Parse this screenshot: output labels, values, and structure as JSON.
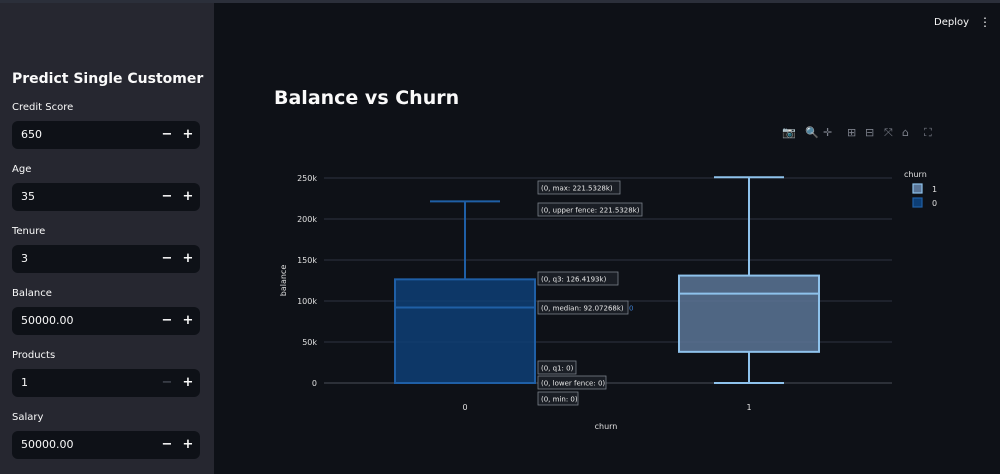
{
  "sidebar": {
    "title": "Predict Single Customer",
    "fields": [
      {
        "label": "Credit Score",
        "value": "650",
        "minus_enabled": true
      },
      {
        "label": "Age",
        "value": "35",
        "minus_enabled": true
      },
      {
        "label": "Tenure",
        "value": "3",
        "minus_enabled": true
      },
      {
        "label": "Balance",
        "value": "50000.00",
        "minus_enabled": true
      },
      {
        "label": "Products",
        "value": "1",
        "minus_enabled": false
      },
      {
        "label": "Salary",
        "value": "50000.00",
        "minus_enabled": true
      }
    ],
    "minus_symbol": "−",
    "plus_symbol": "+"
  },
  "header": {
    "deploy_label": "Deploy",
    "menu_symbol": "⋮"
  },
  "main": {
    "title": "Balance vs Churn"
  },
  "modebar": {
    "camera": "📷",
    "zoom": "🔍",
    "pan": "✛",
    "zoom_in": "⊞",
    "zoom_out": "⊟",
    "autoscale": "⤧",
    "reset": "⌂",
    "fullscreen": "⛶"
  },
  "chart_data": {
    "type": "box",
    "xlabel": "churn",
    "ylabel": "balance",
    "categories": [
      "0",
      "1"
    ],
    "yticks": [
      "0",
      "50k",
      "100k",
      "150k",
      "200k",
      "250k"
    ],
    "ytick_values": [
      0,
      50000,
      100000,
      150000,
      200000,
      250000
    ],
    "ylim": [
      0,
      260000
    ],
    "legend_title": "churn",
    "legend": [
      "1",
      "0"
    ],
    "legend_placement": "top-right",
    "grid": true,
    "series": [
      {
        "name": "0",
        "category": "0",
        "min": 0,
        "lower_fence": 0,
        "q1": 0,
        "median": 92072.68,
        "q3": 126419.3,
        "upper_fence": 221532.8,
        "max": 221532.8,
        "color": "#1f5fa6",
        "fill": "#0d3e75"
      },
      {
        "name": "1",
        "category": "1",
        "min": 0,
        "lower_fence": 0,
        "q1": 38000,
        "median": 109000,
        "q3": 131000,
        "upper_fence": 250900,
        "max": 250900,
        "color": "#8ec2ec",
        "fill": "#5a7597"
      }
    ],
    "hover_labels": [
      "(0, max: 221.5328k)",
      "(0, upper fence: 221.5328k)",
      "(0, q3: 126.4193k)",
      "(0, median: 92.07268k)",
      "(0, q1: 0)",
      "(0, lower fence: 0)",
      "(0, min: 0)"
    ],
    "hover_trace_tag": "0"
  }
}
